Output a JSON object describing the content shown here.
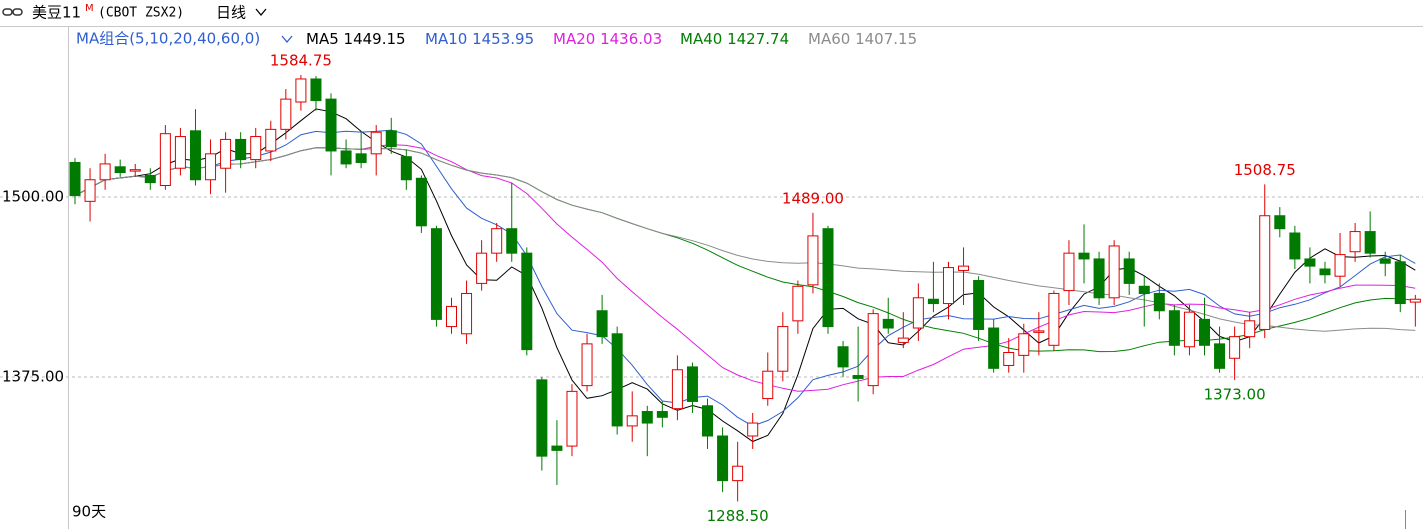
{
  "chart_data": {
    "type": "candlestick",
    "title": "美豆11",
    "title_sup": "M",
    "symbol": "(CBOT ZSX2)",
    "period": "日线",
    "ma_group": "MA组合(5,10,20,40,60,0)",
    "ma": [
      {
        "name": "MA5",
        "window": 5,
        "value": 1449.15,
        "color": "#000000"
      },
      {
        "name": "MA10",
        "window": 10,
        "value": 1453.95,
        "color": "#2f5fd0"
      },
      {
        "name": "MA20",
        "window": 20,
        "value": 1436.03,
        "color": "#e020e0"
      },
      {
        "name": "MA40",
        "window": 40,
        "value": 1427.74,
        "color": "#008000"
      },
      {
        "name": "MA60",
        "window": 60,
        "value": 1407.15,
        "color": "#8c8c8c"
      }
    ],
    "span_label": "90天",
    "up_color": "#e00000",
    "down_color": "#007a00",
    "ylim": [
      1269.4,
      1618.1
    ],
    "yticks": [
      {
        "value": 1500,
        "label": "1500.00"
      },
      {
        "value": 1375,
        "label": "1375.00"
      }
    ],
    "grid": true,
    "open": [
      1524,
      1497,
      1512,
      1521,
      1518,
      1515,
      1508,
      1520,
      1546,
      1512,
      1520,
      1540,
      1526,
      1532,
      1547,
      1566,
      1582,
      1568,
      1532,
      1530,
      1530,
      1546,
      1528,
      1513,
      1478,
      1410,
      1405,
      1440,
      1461,
      1478,
      1461,
      1373,
      1327,
      1327,
      1369,
      1421,
      1405,
      1341,
      1351,
      1351,
      1353,
      1382,
      1355,
      1334,
      1303,
      1334,
      1360,
      1379,
      1414,
      1439,
      1478,
      1396,
      1376,
      1369,
      1415,
      1399,
      1409,
      1429,
      1426,
      1449,
      1442,
      1409,
      1383,
      1390,
      1406,
      1397,
      1435,
      1461,
      1457,
      1430,
      1457,
      1438,
      1433,
      1421,
      1396,
      1415,
      1398,
      1388,
      1403,
      1408,
      1487,
      1475,
      1457,
      1450,
      1445,
      1462,
      1476,
      1457,
      1455,
      1427
    ],
    "high": [
      1527,
      1520,
      1530,
      1526,
      1523,
      1520,
      1550,
      1548,
      1561,
      1540,
      1545,
      1545,
      1548,
      1553,
      1575,
      1584.75,
      1584,
      1572,
      1540,
      1545,
      1550,
      1555,
      1533,
      1515,
      1480,
      1430,
      1442,
      1470,
      1482,
      1510,
      1465,
      1375,
      1345,
      1370,
      1405,
      1432,
      1410,
      1365,
      1355,
      1358,
      1390,
      1385,
      1360,
      1340,
      1330,
      1350,
      1392,
      1420,
      1442,
      1489,
      1480,
      1400,
      1410,
      1422,
      1430,
      1420,
      1440,
      1455,
      1455,
      1465,
      1445,
      1415,
      1402,
      1412,
      1420,
      1435,
      1470,
      1481,
      1462,
      1470,
      1462,
      1445,
      1440,
      1425,
      1425,
      1430,
      1410,
      1410,
      1420,
      1508.75,
      1493,
      1480,
      1465,
      1455,
      1475,
      1482,
      1490,
      1462,
      1460,
      1432
    ],
    "low": [
      1495,
      1483,
      1505,
      1514,
      1514,
      1505,
      1505,
      1515,
      1508,
      1502,
      1503,
      1520,
      1520,
      1525,
      1540,
      1560,
      1560,
      1515,
      1520,
      1520,
      1515,
      1530,
      1505,
      1475,
      1410,
      1405,
      1398,
      1435,
      1455,
      1455,
      1390,
      1310,
      1300,
      1320,
      1365,
      1398,
      1335,
      1330,
      1320,
      1340,
      1345,
      1350,
      1325,
      1295,
      1288.5,
      1325,
      1355,
      1372,
      1405,
      1433,
      1405,
      1375,
      1358,
      1363,
      1405,
      1395,
      1400,
      1420,
      1415,
      1425,
      1400,
      1378,
      1378,
      1378,
      1390,
      1393,
      1425,
      1440,
      1425,
      1425,
      1432,
      1410,
      1415,
      1390,
      1390,
      1390,
      1378,
      1373,
      1395,
      1402,
      1472,
      1450,
      1440,
      1440,
      1438,
      1455,
      1458,
      1445,
      1420,
      1410
    ],
    "close": [
      1501,
      1512,
      1523,
      1517,
      1519,
      1510,
      1544,
      1542,
      1512,
      1530,
      1540,
      1526,
      1542,
      1547,
      1568,
      1582,
      1567,
      1532,
      1523,
      1524,
      1545,
      1535,
      1512,
      1480,
      1415,
      1424,
      1433,
      1461,
      1478,
      1461,
      1394,
      1320,
      1324,
      1365,
      1398,
      1403,
      1341,
      1348,
      1343,
      1347,
      1380,
      1358,
      1334,
      1303,
      1313,
      1343,
      1379,
      1410,
      1438,
      1473,
      1410,
      1382,
      1374,
      1419,
      1409,
      1402,
      1430,
      1426,
      1451,
      1452,
      1408,
      1381,
      1392,
      1405,
      1407,
      1433,
      1461,
      1457,
      1430,
      1466,
      1440,
      1433,
      1421,
      1397,
      1420,
      1397,
      1381,
      1403,
      1414,
      1487,
      1478,
      1457,
      1452,
      1446,
      1460,
      1476,
      1461,
      1454,
      1426,
      1429
    ],
    "annotations": [
      {
        "value": 1584.75,
        "label": "1584.75"
      },
      {
        "value": 1489,
        "label": "1489.00"
      },
      {
        "value": 1508.75,
        "label": "1508.75"
      },
      {
        "value": 1288.5,
        "label": "1288.50"
      },
      {
        "value": 1373,
        "label": "1373.00"
      }
    ]
  }
}
